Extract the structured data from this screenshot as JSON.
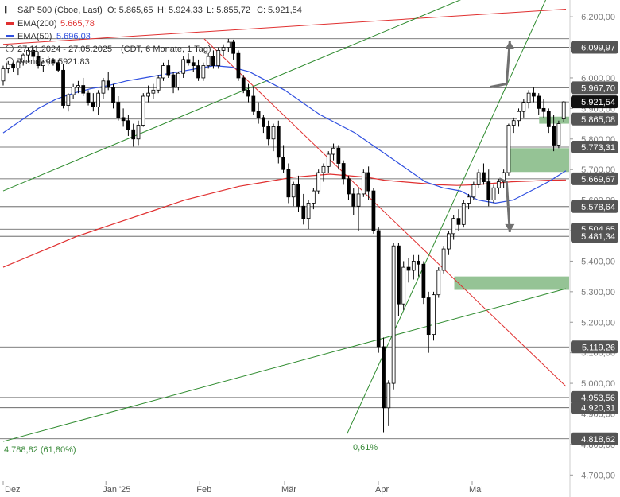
{
  "chart_data": {
    "type": "candlestick",
    "header": {
      "symbol": "S&P 500 (Cboe, Last)",
      "open": "O: 5.865,65",
      "high": "H: 5.924,33",
      "low": "L: 5.855,72",
      "close": "C: 5.921,54"
    },
    "legend": [
      {
        "label": "EMA(200)",
        "value": "5.665,78",
        "color": "#e03030"
      },
      {
        "label": "EMA(50)",
        "value": "5.696,03",
        "color": "#3050e0"
      }
    ],
    "info": {
      "range": "27.11.2024 - 27.05.2025",
      "period": "(CDT, 6 Monate, 1 Tag)",
      "trendline": "Trendlinie 5921.83"
    },
    "x_labels": [
      {
        "label": "Dez",
        "day": 0
      },
      {
        "label": "Jan '25",
        "day": 23
      },
      {
        "label": "Feb",
        "day": 44
      },
      {
        "label": "Mär",
        "day": 63
      },
      {
        "label": "Apr",
        "day": 84
      },
      {
        "label": "Mai",
        "day": 105
      }
    ],
    "y_ticks": [
      4700,
      4800,
      4900,
      5000,
      5100,
      5200,
      5300,
      5400,
      5500,
      5600,
      5700,
      5800,
      5900,
      6000,
      6100,
      6200
    ],
    "y_tick_labels": [
      "4.700,00",
      "4.800,00",
      "4.900,00",
      "5.000,00",
      "5.100,00",
      "5.200,00",
      "5.300,00",
      "5.400,00",
      "5.500,00",
      "5.600,00",
      "5.700,00",
      "5.800,00",
      "5.900,00",
      "6.000,00",
      "6.100,00",
      "6.200,00"
    ],
    "ylim": [
      4680,
      6255
    ],
    "horizontal_levels": [
      {
        "value": 6128,
        "label": ""
      },
      {
        "value": 6099.97,
        "label": "6.099,97"
      },
      {
        "value": 5967.7,
        "label": "5.967,70"
      },
      {
        "value": 5921.54,
        "label": "5.921,54",
        "current": true
      },
      {
        "value": 5865.08,
        "label": "5.865,08"
      },
      {
        "value": 5773.31,
        "label": "5.773,31"
      },
      {
        "value": 5669.67,
        "label": "5.669,67"
      },
      {
        "value": 5578.64,
        "label": "5.578,64"
      },
      {
        "value": 5504.65,
        "label": "5.504,65"
      },
      {
        "value": 5481.34,
        "label": "5.481,34"
      },
      {
        "value": 5119.26,
        "label": "5.119,26"
      },
      {
        "value": 4953.56,
        "label": "4.953,56"
      },
      {
        "value": 4920.31,
        "label": "4.920,31"
      },
      {
        "value": 4818.62,
        "label": "4.818,62"
      }
    ],
    "zones": [
      {
        "day_start": 120,
        "day_end": 132,
        "low": 5850,
        "high": 5873
      },
      {
        "day_start": 113,
        "day_end": 132,
        "low": 5692,
        "high": 5770
      },
      {
        "day_start": 101,
        "day_end": 132,
        "low": 5306,
        "high": 5350
      }
    ],
    "fib_label": "4.788,82 (61,80%)",
    "low_label": "0,61%",
    "candles": [
      [
        5990,
        6040,
        5975,
        6030
      ],
      [
        6030,
        6055,
        6015,
        6045
      ],
      [
        6045,
        6055,
        6020,
        6032
      ],
      [
        6032,
        6060,
        6010,
        6052
      ],
      [
        6052,
        6080,
        6040,
        6075
      ],
      [
        6075,
        6100,
        6050,
        6090
      ],
      [
        6090,
        6100,
        6060,
        6070
      ],
      [
        6070,
        6085,
        6030,
        6040
      ],
      [
        6040,
        6060,
        6020,
        6052
      ],
      [
        6052,
        6070,
        6040,
        6060
      ],
      [
        6060,
        6065,
        6040,
        6050
      ],
      [
        6050,
        6060,
        6020,
        6025
      ],
      [
        6025,
        6045,
        5900,
        5910
      ],
      [
        5910,
        5950,
        5890,
        5945
      ],
      [
        5945,
        5980,
        5930,
        5970
      ],
      [
        5970,
        5990,
        5950,
        5975
      ],
      [
        5975,
        6000,
        5940,
        5950
      ],
      [
        5950,
        5960,
        5910,
        5920
      ],
      [
        5920,
        5950,
        5890,
        5905
      ],
      [
        5905,
        5960,
        5880,
        5950
      ],
      [
        5950,
        6000,
        5930,
        5990
      ],
      [
        5990,
        6020,
        5960,
        5970
      ],
      [
        5970,
        5980,
        5900,
        5920
      ],
      [
        5920,
        5940,
        5860,
        5870
      ],
      [
        5870,
        5900,
        5840,
        5860
      ],
      [
        5860,
        5880,
        5810,
        5830
      ],
      [
        5830,
        5850,
        5775,
        5800
      ],
      [
        5800,
        5860,
        5780,
        5845
      ],
      [
        5845,
        5950,
        5840,
        5940
      ],
      [
        5940,
        5975,
        5920,
        5950
      ],
      [
        5950,
        5980,
        5930,
        5960
      ],
      [
        5960,
        6010,
        5950,
        6000
      ],
      [
        6000,
        6050,
        5990,
        6040
      ],
      [
        6040,
        6060,
        6000,
        6010
      ],
      [
        6010,
        6020,
        5950,
        5970
      ],
      [
        5970,
        6020,
        5960,
        6015
      ],
      [
        6015,
        6070,
        6000,
        6060
      ],
      [
        6060,
        6080,
        6040,
        6050
      ],
      [
        6050,
        6070,
        6020,
        6040
      ],
      [
        6040,
        6060,
        5990,
        6000
      ],
      [
        6000,
        6050,
        5990,
        6040
      ],
      [
        6040,
        6080,
        6030,
        6070
      ],
      [
        6070,
        6090,
        6030,
        6040
      ],
      [
        6040,
        6100,
        6030,
        6090
      ],
      [
        6090,
        6110,
        6070,
        6100
      ],
      [
        6100,
        6128,
        6085,
        6117
      ],
      [
        6117,
        6125,
        6060,
        6080
      ],
      [
        6080,
        6090,
        5990,
        6000
      ],
      [
        6000,
        6010,
        5950,
        5960
      ],
      [
        5960,
        5980,
        5920,
        5940
      ],
      [
        5940,
        5970,
        5880,
        5890
      ],
      [
        5890,
        5920,
        5850,
        5870
      ],
      [
        5870,
        5880,
        5820,
        5840
      ],
      [
        5840,
        5860,
        5780,
        5800
      ],
      [
        5800,
        5850,
        5760,
        5840
      ],
      [
        5840,
        5860,
        5720,
        5740
      ],
      [
        5740,
        5780,
        5690,
        5700
      ],
      [
        5700,
        5720,
        5590,
        5610
      ],
      [
        5610,
        5660,
        5580,
        5650
      ],
      [
        5650,
        5680,
        5560,
        5580
      ],
      [
        5580,
        5620,
        5520,
        5540
      ],
      [
        5540,
        5600,
        5505,
        5590
      ],
      [
        5590,
        5640,
        5570,
        5630
      ],
      [
        5630,
        5700,
        5620,
        5690
      ],
      [
        5690,
        5720,
        5660,
        5710
      ],
      [
        5710,
        5760,
        5690,
        5750
      ],
      [
        5750,
        5785,
        5730,
        5770
      ],
      [
        5770,
        5780,
        5700,
        5720
      ],
      [
        5720,
        5730,
        5650,
        5670
      ],
      [
        5670,
        5680,
        5600,
        5620
      ],
      [
        5620,
        5640,
        5550,
        5580
      ],
      [
        5580,
        5640,
        5500,
        5620
      ],
      [
        5620,
        5700,
        5610,
        5690
      ],
      [
        5690,
        5710,
        5600,
        5630
      ],
      [
        5630,
        5640,
        5490,
        5500
      ],
      [
        5500,
        5510,
        5100,
        5120
      ],
      [
        5120,
        5150,
        4840,
        4920
      ],
      [
        4920,
        5010,
        4860,
        5000
      ],
      [
        5000,
        5460,
        4980,
        5450
      ],
      [
        5450,
        5460,
        5220,
        5260
      ],
      [
        5260,
        5400,
        5240,
        5380
      ],
      [
        5380,
        5410,
        5330,
        5370
      ],
      [
        5370,
        5420,
        5340,
        5400
      ],
      [
        5400,
        5420,
        5350,
        5390
      ],
      [
        5390,
        5400,
        5260,
        5280
      ],
      [
        5280,
        5300,
        5100,
        5160
      ],
      [
        5160,
        5300,
        5140,
        5290
      ],
      [
        5290,
        5380,
        5280,
        5370
      ],
      [
        5370,
        5450,
        5360,
        5440
      ],
      [
        5440,
        5500,
        5420,
        5490
      ],
      [
        5490,
        5550,
        5470,
        5540
      ],
      [
        5540,
        5570,
        5500,
        5520
      ],
      [
        5520,
        5600,
        5510,
        5590
      ],
      [
        5590,
        5620,
        5570,
        5610
      ],
      [
        5610,
        5660,
        5600,
        5650
      ],
      [
        5650,
        5700,
        5640,
        5690
      ],
      [
        5690,
        5720,
        5650,
        5660
      ],
      [
        5660,
        5700,
        5580,
        5600
      ],
      [
        5600,
        5650,
        5590,
        5640
      ],
      [
        5640,
        5670,
        5620,
        5660
      ],
      [
        5660,
        5700,
        5640,
        5690
      ],
      [
        5690,
        5850,
        5680,
        5845
      ],
      [
        5845,
        5870,
        5820,
        5860
      ],
      [
        5860,
        5900,
        5840,
        5890
      ],
      [
        5890,
        5930,
        5870,
        5920
      ],
      [
        5920,
        5960,
        5900,
        5950
      ],
      [
        5950,
        5968,
        5920,
        5940
      ],
      [
        5940,
        5950,
        5880,
        5900
      ],
      [
        5900,
        5930,
        5870,
        5890
      ],
      [
        5890,
        5900,
        5820,
        5840
      ],
      [
        5840,
        5880,
        5760,
        5780
      ],
      [
        5780,
        5860,
        5770,
        5850
      ],
      [
        5865.65,
        5924.33,
        5855.72,
        5921.54
      ]
    ],
    "ema200": [
      5380,
      5405,
      5430,
      5455,
      5480,
      5500,
      5520,
      5540,
      5560,
      5580,
      5600,
      5615,
      5630,
      5645,
      5655,
      5665,
      5675,
      5680,
      5685,
      5680,
      5675,
      5665,
      5660,
      5655,
      5650,
      5648,
      5650,
      5655,
      5660,
      5662,
      5665,
      5666
    ],
    "ema50": [
      5820,
      5860,
      5900,
      5930,
      5950,
      5965,
      5975,
      5990,
      6000,
      6010,
      6020,
      6030,
      6040,
      6035,
      6020,
      5990,
      5960,
      5920,
      5880,
      5850,
      5820,
      5780,
      5740,
      5700,
      5660,
      5640,
      5630,
      5600,
      5590,
      5600,
      5630,
      5660,
      5696
    ],
    "trendlines": [
      {
        "name": "resistance",
        "color": "#e03030",
        "from": [
          45,
          6128
        ],
        "to": [
          126,
          4990
        ]
      },
      {
        "name": "long-red",
        "color": "#e03030",
        "from": [
          0,
          6110
        ],
        "to": [
          126,
          6225
        ]
      },
      {
        "name": "support-long",
        "color": "#2e8b2e",
        "from": [
          0,
          5630
        ],
        "to": [
          126,
          6400
        ]
      },
      {
        "name": "support-steep",
        "color": "#2e8b2e",
        "from": [
          77,
          4835
        ],
        "to": [
          126,
          6400
        ]
      },
      {
        "name": "support-flat",
        "color": "#2e8b2e",
        "from": [
          0,
          4810
        ],
        "to": [
          126,
          5310
        ]
      }
    ],
    "arrows": [
      {
        "direction": "up",
        "from": [
          108,
          5970
        ],
        "to": [
          112,
          6120
        ]
      },
      {
        "direction": "down",
        "from": [
          110,
          5670
        ],
        "to": [
          112,
          5495
        ]
      }
    ]
  }
}
